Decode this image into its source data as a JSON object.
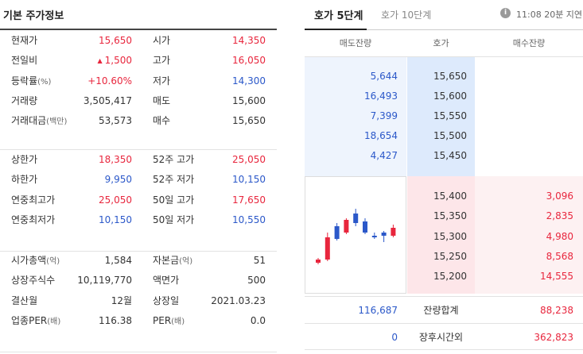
{
  "left": {
    "title": "기본 주가정보",
    "section1": [
      {
        "l1": "현재가",
        "l1s": "",
        "v1": "15,650",
        "c1": "red",
        "tri": "",
        "l2": "시가",
        "v2": "14,350",
        "c2": "red"
      },
      {
        "l1": "전일비",
        "l1s": "",
        "v1": "1,500",
        "c1": "red",
        "tri": "▲",
        "l2": "고가",
        "v2": "16,050",
        "c2": "red"
      },
      {
        "l1": "등락률",
        "l1s": "(%)",
        "v1": "+10.60%",
        "c1": "red",
        "tri": "",
        "l2": "저가",
        "v2": "14,300",
        "c2": "blue"
      },
      {
        "l1": "거래량",
        "l1s": "",
        "v1": "3,505,417",
        "c1": "",
        "tri": "",
        "l2": "매도",
        "v2": "15,600",
        "c2": ""
      },
      {
        "l1": "거래대금",
        "l1s": "(백만)",
        "v1": "53,573",
        "c1": "",
        "tri": "",
        "l2": "매수",
        "v2": "15,650",
        "c2": ""
      }
    ],
    "section2": [
      {
        "l1": "상한가",
        "l1s": "",
        "v1": "18,350",
        "c1": "red",
        "tri": "",
        "l2": "52주 고가",
        "v2": "25,050",
        "c2": "red"
      },
      {
        "l1": "하한가",
        "l1s": "",
        "v1": "9,950",
        "c1": "blue",
        "tri": "",
        "l2": "52주 저가",
        "v2": "10,150",
        "c2": "blue"
      },
      {
        "l1": "연중최고가",
        "l1s": "",
        "v1": "25,050",
        "c1": "red",
        "tri": "",
        "l2": "50일 고가",
        "v2": "17,650",
        "c2": "red"
      },
      {
        "l1": "연중최저가",
        "l1s": "",
        "v1": "10,150",
        "c1": "blue",
        "tri": "",
        "l2": "50일 저가",
        "v2": "10,550",
        "c2": "blue"
      }
    ],
    "section3": [
      {
        "l1": "시가총액",
        "l1s": "(억)",
        "v1": "1,584",
        "c1": "",
        "tri": "",
        "l2": "자본금",
        "l2s": "(억)",
        "v2": "51",
        "c2": ""
      },
      {
        "l1": "상장주식수",
        "l1s": "",
        "v1": "10,119,770",
        "c1": "",
        "tri": "",
        "l2": "액면가",
        "l2s": "",
        "v2": "500",
        "c2": ""
      },
      {
        "l1": "결산월",
        "l1s": "",
        "v1": "12월",
        "c1": "",
        "tri": "",
        "l2": "상장일",
        "l2s": "",
        "v2": "2021.03.23",
        "c2": ""
      },
      {
        "l1": "업종PER",
        "l1s": "(배)",
        "v1": "116.38",
        "c1": "",
        "tri": "",
        "l2": "PER",
        "l2s": "(배)",
        "v2": "0.0",
        "c2": ""
      }
    ]
  },
  "right": {
    "tab_active": "호가 5단계",
    "tab_inactive": "호가 10단계",
    "info_icon": "i",
    "delay": "11:08 20분 지연",
    "head_ask": "매도잔량",
    "head_price": "호가",
    "head_bid": "매수잔량",
    "asks": [
      {
        "vol": "5,644",
        "price": "15,650"
      },
      {
        "vol": "16,493",
        "price": "15,600"
      },
      {
        "vol": "7,399",
        "price": "15,550"
      },
      {
        "vol": "18,654",
        "price": "15,500"
      },
      {
        "vol": "4,427",
        "price": "15,450"
      }
    ],
    "bids": [
      {
        "price": "15,400",
        "vol": "3,096"
      },
      {
        "price": "15,350",
        "vol": "2,835"
      },
      {
        "price": "15,300",
        "vol": "4,980"
      },
      {
        "price": "15,250",
        "vol": "8,568"
      },
      {
        "price": "15,200",
        "vol": "14,555"
      }
    ],
    "total_ask": "116,687",
    "total_label": "잔량합계",
    "total_bid": "88,238",
    "after_ask": "0",
    "after_label": "장후시간외",
    "after_bid": "362,823"
  },
  "colors": {
    "up": "#e8263d",
    "down": "#2b58c9",
    "ask_bg": "#ddeafc",
    "bid_bg": "#fde6e9"
  },
  "candles": [
    {
      "o": 14350,
      "c": 14450,
      "h": 14500,
      "l": 14300,
      "dir": "up"
    },
    {
      "o": 14450,
      "c": 15150,
      "h": 15300,
      "l": 14400,
      "dir": "up"
    },
    {
      "o": 15500,
      "c": 15100,
      "h": 15600,
      "l": 15050,
      "dir": "down"
    },
    {
      "o": 15300,
      "c": 15700,
      "h": 15750,
      "l": 15250,
      "dir": "up"
    },
    {
      "o": 15900,
      "c": 15600,
      "h": 16050,
      "l": 15500,
      "dir": "down"
    },
    {
      "o": 15650,
      "c": 15300,
      "h": 15750,
      "l": 15250,
      "dir": "down"
    },
    {
      "o": 15200,
      "c": 15150,
      "h": 15300,
      "l": 15100,
      "dir": "down"
    },
    {
      "o": 15300,
      "c": 15200,
      "h": 15350,
      "l": 15000,
      "dir": "down"
    },
    {
      "o": 15200,
      "c": 15450,
      "h": 15550,
      "l": 15150,
      "dir": "up"
    }
  ]
}
